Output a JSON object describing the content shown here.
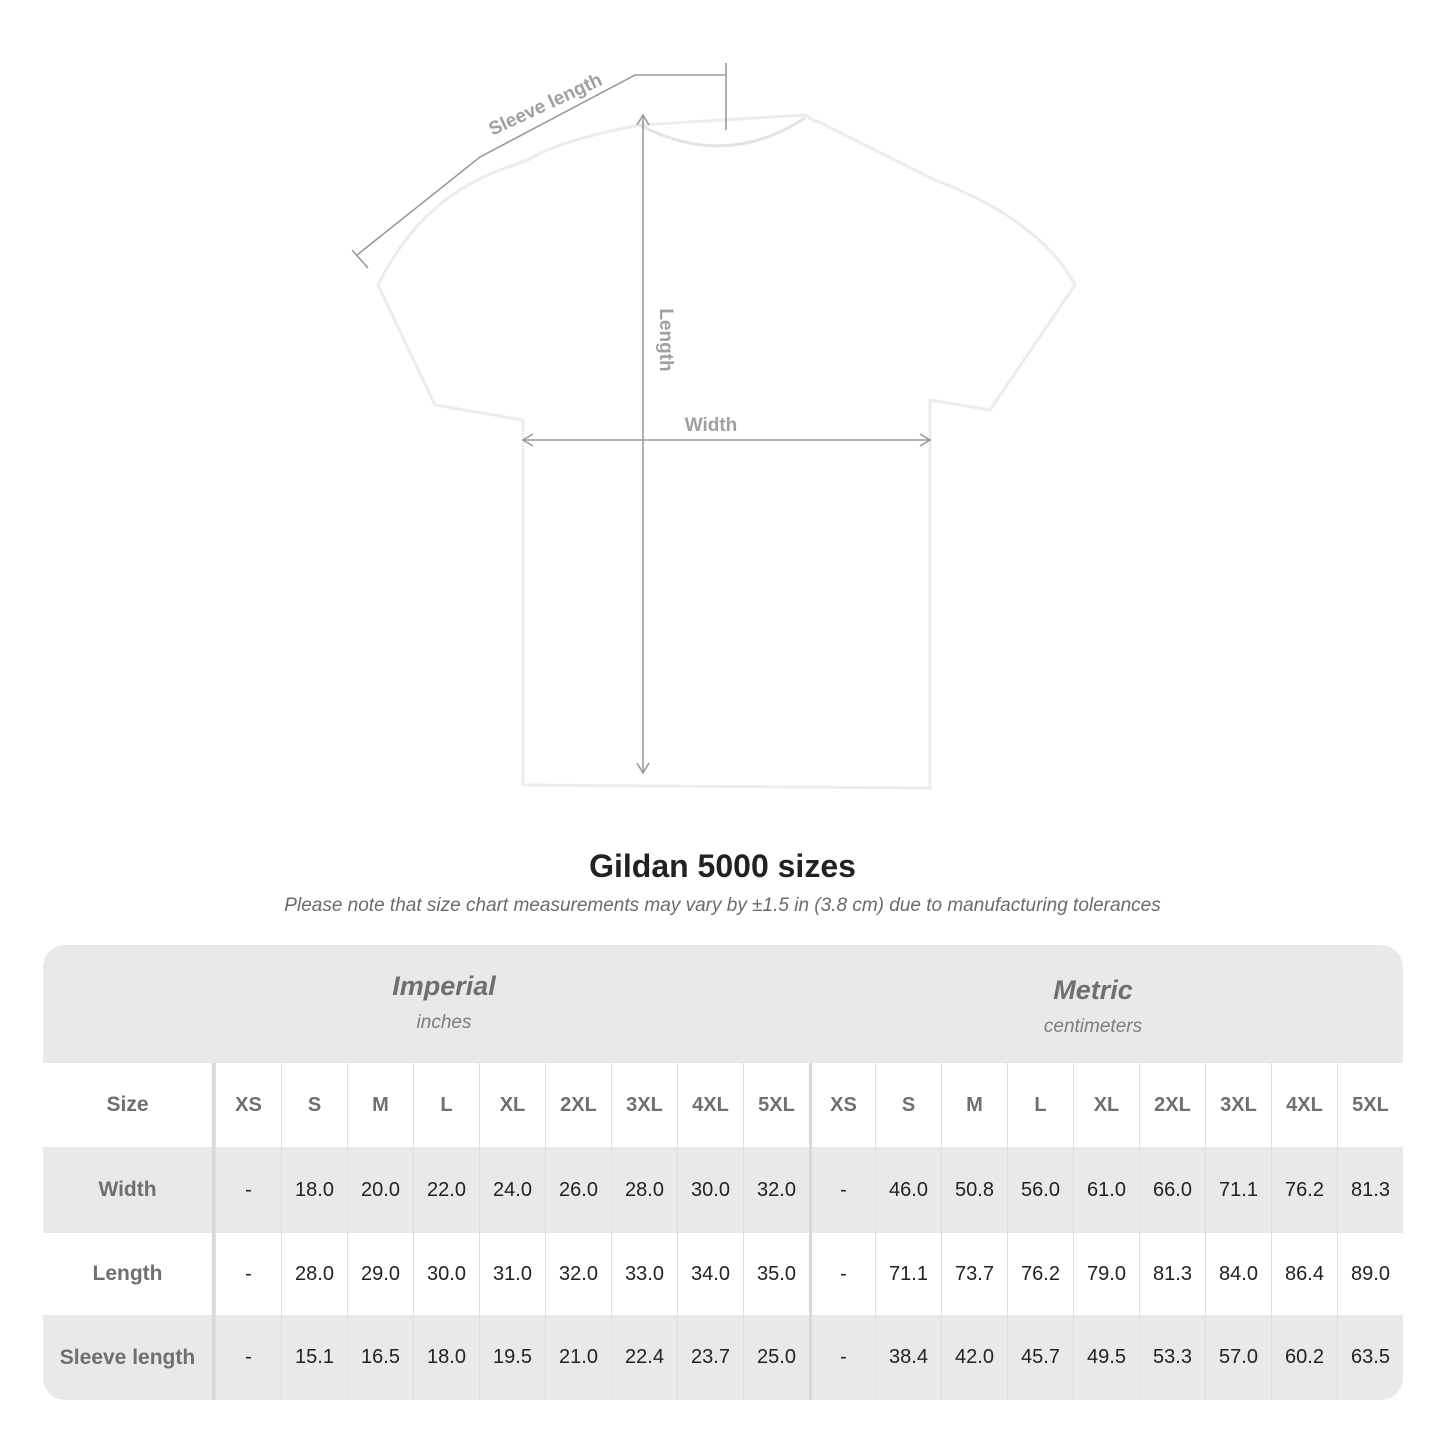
{
  "diagram": {
    "sleeve_label": "Sleeve length",
    "length_label": "Length",
    "width_label": "Width"
  },
  "title": "Gildan 5000 sizes",
  "note": "Please note that size chart measurements may vary by ±1.5 in (3.8 cm) due to manufacturing tolerances",
  "imperial": {
    "heading": "Imperial",
    "unit": "inches"
  },
  "metric": {
    "heading": "Metric",
    "unit": "centimeters"
  },
  "size_label": "Size",
  "sizes": [
    "XS",
    "S",
    "M",
    "L",
    "XL",
    "2XL",
    "3XL",
    "4XL",
    "5XL"
  ],
  "rows": [
    {
      "label": "Width",
      "imperial": [
        "-",
        "18.0",
        "20.0",
        "22.0",
        "24.0",
        "26.0",
        "28.0",
        "30.0",
        "32.0"
      ],
      "metric": [
        "-",
        "46.0",
        "50.8",
        "56.0",
        "61.0",
        "66.0",
        "71.1",
        "76.2",
        "81.3"
      ]
    },
    {
      "label": "Length",
      "imperial": [
        "-",
        "28.0",
        "29.0",
        "30.0",
        "31.0",
        "32.0",
        "33.0",
        "34.0",
        "35.0"
      ],
      "metric": [
        "-",
        "71.1",
        "73.7",
        "76.2",
        "79.0",
        "81.3",
        "84.0",
        "86.4",
        "89.0"
      ]
    },
    {
      "label": "Sleeve length",
      "imperial": [
        "-",
        "15.1",
        "16.5",
        "18.0",
        "19.5",
        "21.0",
        "22.4",
        "23.7",
        "25.0"
      ],
      "metric": [
        "-",
        "38.4",
        "42.0",
        "45.7",
        "49.5",
        "53.3",
        "57.0",
        "60.2",
        "63.5"
      ]
    }
  ],
  "colors": {
    "table_gray": "#e9e9e9",
    "label_gray": "#6d7073",
    "measure_line": "#9a9a9a"
  }
}
